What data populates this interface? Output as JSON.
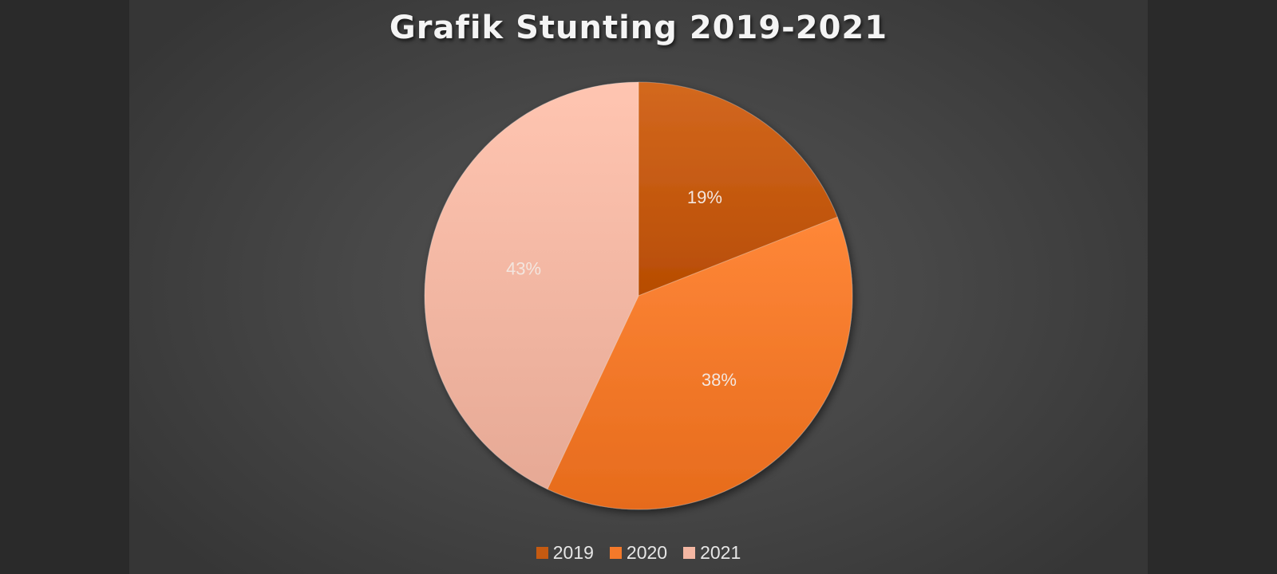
{
  "chart_data": {
    "type": "pie",
    "title": "Grafik Stunting 2019-2021",
    "categories": [
      "2019",
      "2020",
      "2021"
    ],
    "values": [
      19,
      38,
      43
    ],
    "value_labels": [
      "19%",
      "38%",
      "43%"
    ],
    "colors": [
      "#c55a11",
      "#f4792a",
      "#f4b7a3"
    ],
    "legend_position": "bottom",
    "start_angle": "12 o'clock, clockwise"
  }
}
